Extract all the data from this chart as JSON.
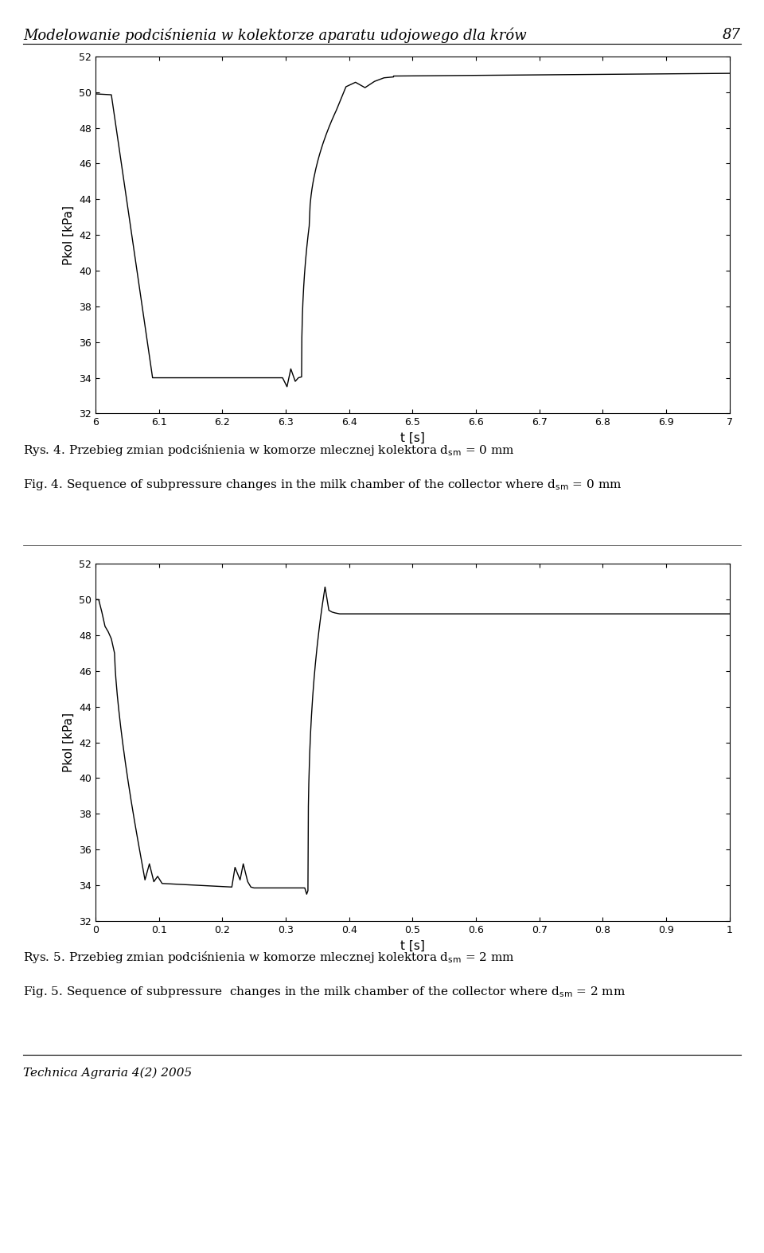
{
  "header_text": "Modelowanie podciśnienia w kolektorze aparatu udojowego dla krów",
  "header_number": "87",
  "footer_text": "Technica Agraria 4(2) 2005",
  "ylabel": "Pkol [kPa]",
  "xlabel": "t [s]",
  "ylim": [
    32,
    52
  ],
  "yticks": [
    32,
    34,
    36,
    38,
    40,
    42,
    44,
    46,
    48,
    50,
    52
  ],
  "plot1_xlim": [
    6.0,
    7.0
  ],
  "plot1_xticks": [
    6.0,
    6.1,
    6.2,
    6.3,
    6.4,
    6.5,
    6.6,
    6.7,
    6.8,
    6.9,
    7.0
  ],
  "plot1_xticklabels": [
    "6",
    "6.1",
    "6.2",
    "6.3",
    "6.4",
    "6.5",
    "6.6",
    "6.7",
    "6.8",
    "6.9",
    "7"
  ],
  "plot2_xlim": [
    0.0,
    1.0
  ],
  "plot2_xticks": [
    0.0,
    0.1,
    0.2,
    0.3,
    0.4,
    0.5,
    0.6,
    0.7,
    0.8,
    0.9,
    1.0
  ],
  "plot2_xticklabels": [
    "0",
    "0.1",
    "0.2",
    "0.3",
    "0.4",
    "0.5",
    "0.6",
    "0.7",
    "0.8",
    "0.9",
    "1"
  ],
  "line_color": "#000000",
  "line_width": 1.0,
  "bg_color": "#ffffff",
  "text_color": "#000000",
  "tick_fontsize": 9,
  "axis_fontsize": 11,
  "caption_fontsize": 11,
  "header_fontsize": 13,
  "rys4": "Rys. 4. Przebieg zmian podciśnienia w komorze mlecznej kolektora d$_{\\mathrm{sm}}$ = 0 mm",
  "fig4": "Fig. 4. Sequence of subpressure changes in the milk chamber of the collector where d$_{\\mathrm{sm}}$ = 0 mm",
  "rys5": "Rys. 5. Przebieg zmian podciśnienia w komorze mlecznej kolektora d$_{\\mathrm{sm}}$ = 2 mm",
  "fig5": "Fig. 5. Sequence of subpressure  changes in the milk chamber of the collector where d$_{\\mathrm{sm}}$ = 2 mm"
}
